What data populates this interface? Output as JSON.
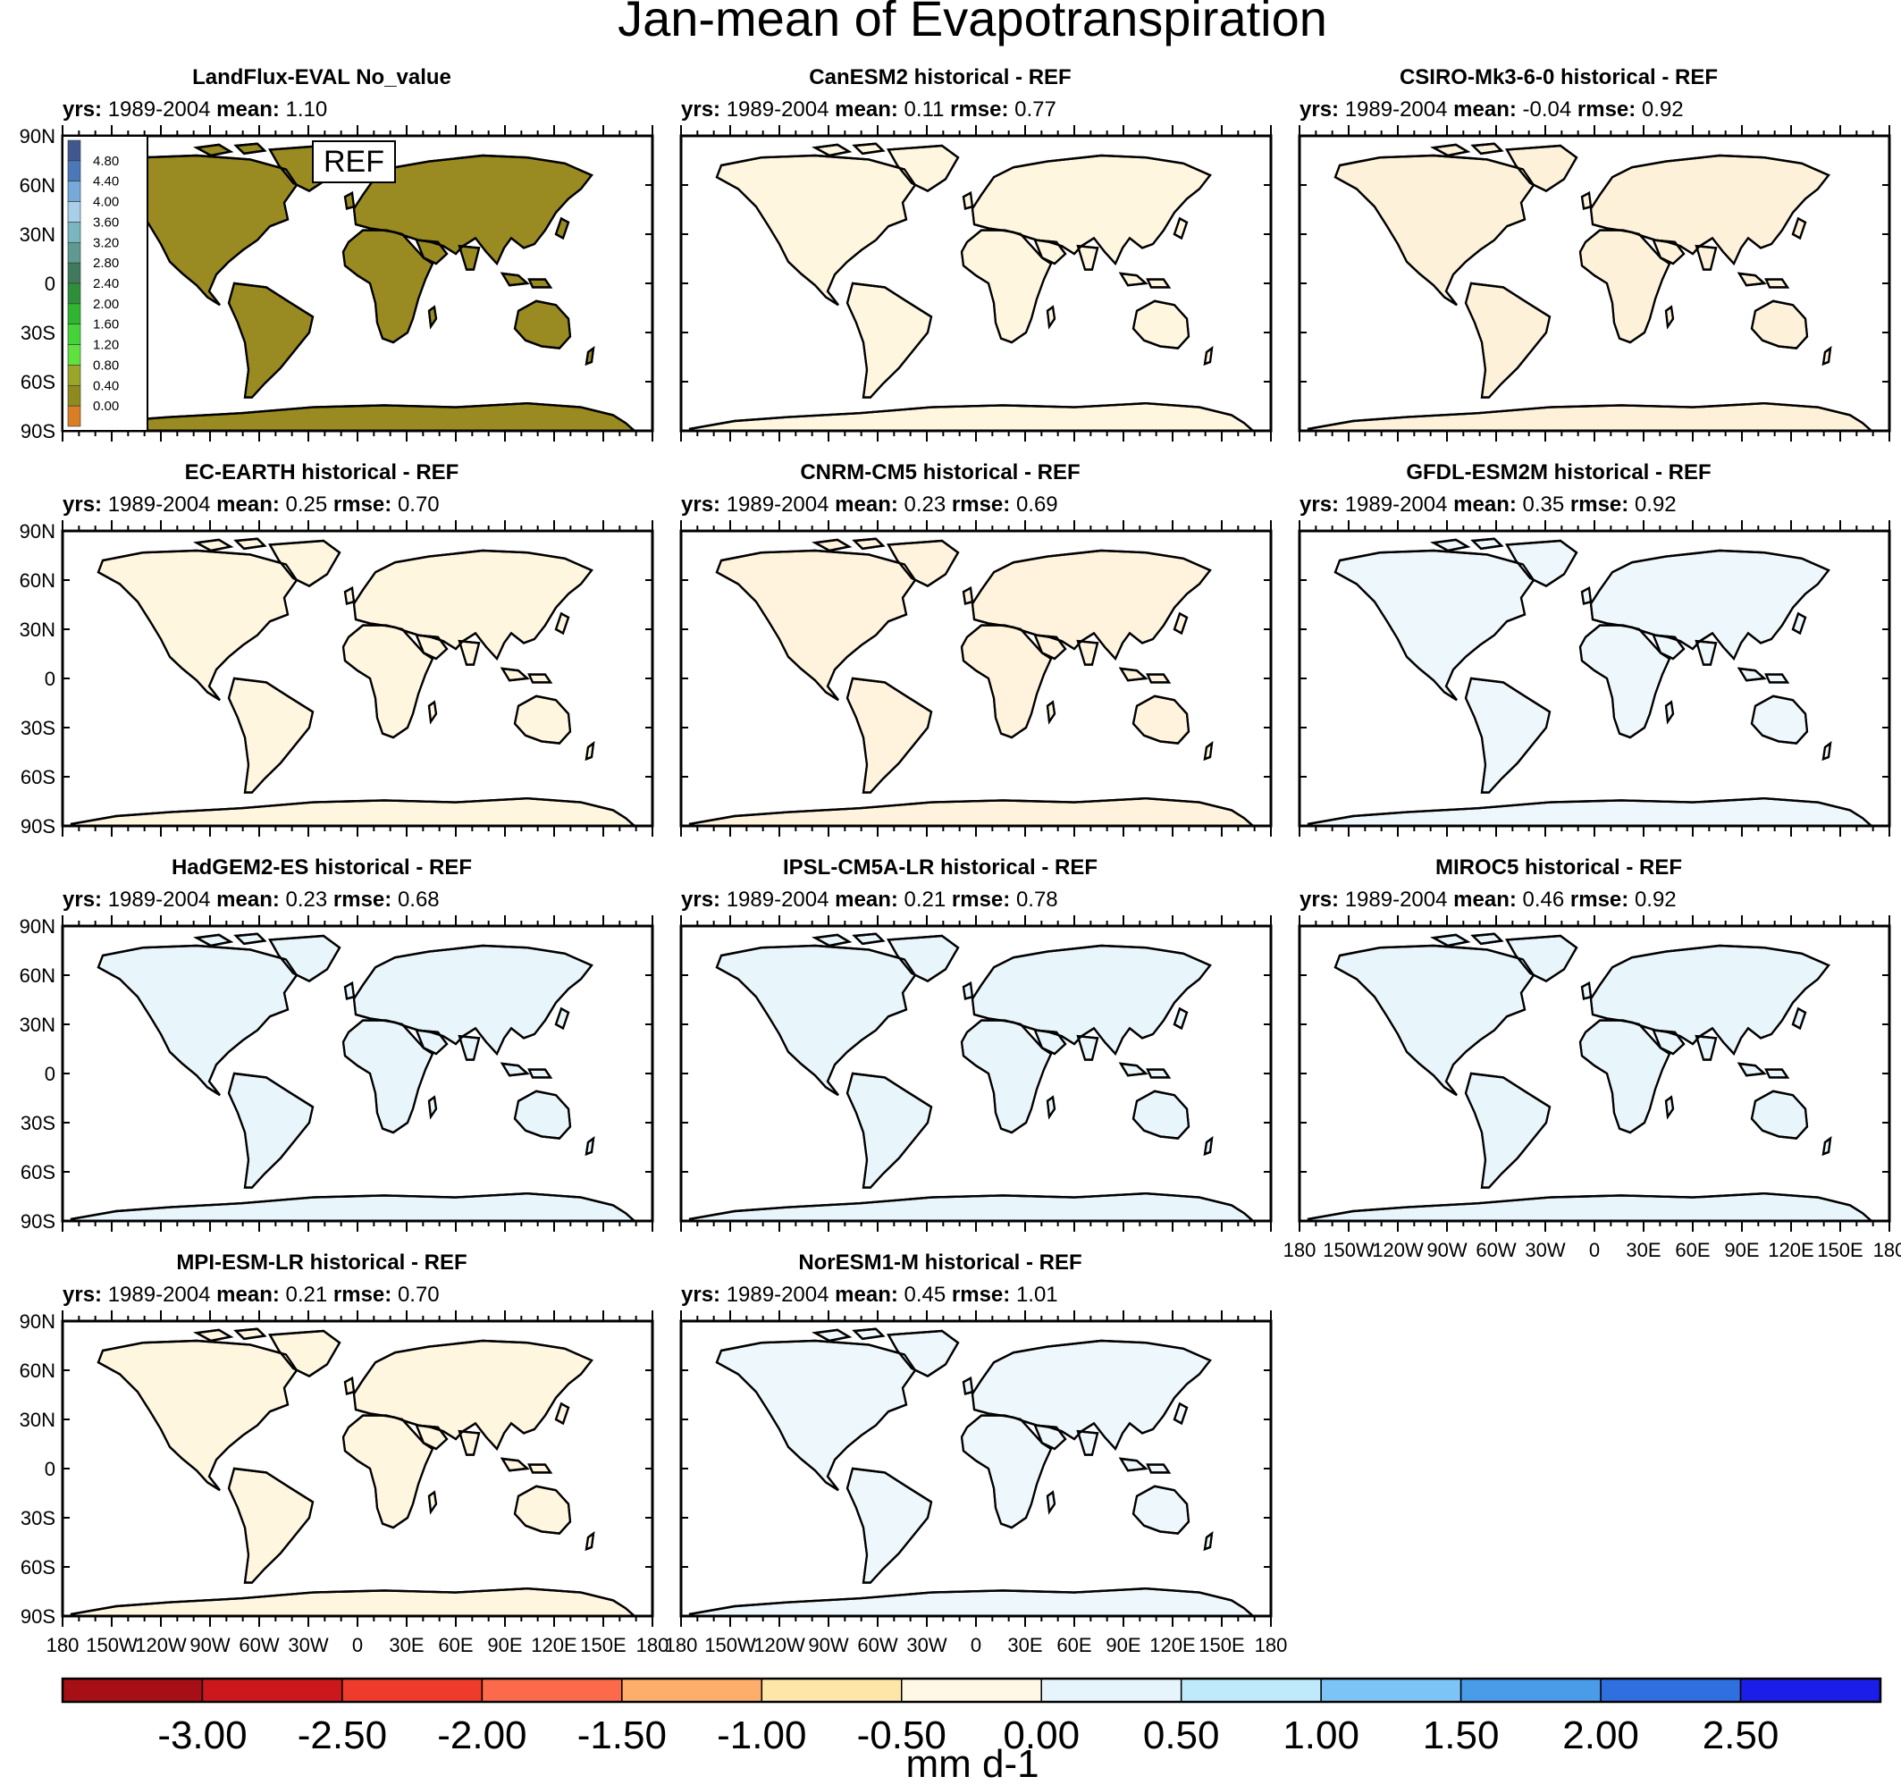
{
  "chart_data": {
    "type": "heatmap",
    "title": "Jan-mean of Evapotranspiration",
    "colorbar": {
      "label": "mm d-1",
      "tick_labels": [
        "-3.00",
        "-2.50",
        "-2.00",
        "-1.50",
        "-1.00",
        "-0.50",
        "0.00",
        "0.50",
        "1.00",
        "1.50",
        "2.00",
        "2.50"
      ],
      "colors": [
        "#a50f15",
        "#cb181d",
        "#ef3b2c",
        "#fb6a4a",
        "#fdae6b",
        "#fde6a8",
        "#fff8e7",
        "#e6f5fb",
        "#bfeafc",
        "#7cc4f5",
        "#4a9be8",
        "#2f6fe0",
        "#1a1ee6"
      ]
    },
    "lat_ticks": [
      "90N",
      "60N",
      "30N",
      "0",
      "30S",
      "60S",
      "90S"
    ],
    "lon_ticks": [
      "180",
      "150W",
      "120W",
      "90W",
      "60W",
      "30W",
      "0",
      "30E",
      "60E",
      "90E",
      "120E",
      "150E",
      "180"
    ],
    "panels": [
      {
        "title": "LandFlux-EVAL No_value",
        "yrs": "1989-2004",
        "mean": "1.10",
        "rmse": null,
        "ref": true,
        "ref_label": "REF"
      },
      {
        "title": "CanESM2 historical - REF",
        "yrs": "1989-2004",
        "mean": "0.11",
        "rmse": "0.77"
      },
      {
        "title": "CSIRO-Mk3-6-0 historical - REF",
        "yrs": "1989-2004",
        "mean": "-0.04",
        "rmse": "0.92"
      },
      {
        "title": "EC-EARTH historical - REF",
        "yrs": "1989-2004",
        "mean": "0.25",
        "rmse": "0.70"
      },
      {
        "title": "CNRM-CM5 historical - REF",
        "yrs": "1989-2004",
        "mean": "0.23",
        "rmse": "0.69"
      },
      {
        "title": "GFDL-ESM2M historical - REF",
        "yrs": "1989-2004",
        "mean": "0.35",
        "rmse": "0.92"
      },
      {
        "title": "HadGEM2-ES historical - REF",
        "yrs": "1989-2004",
        "mean": "0.23",
        "rmse": "0.68"
      },
      {
        "title": "IPSL-CM5A-LR historical - REF",
        "yrs": "1989-2004",
        "mean": "0.21",
        "rmse": "0.78"
      },
      {
        "title": "MIROC5 historical - REF",
        "yrs": "1989-2004",
        "mean": "0.46",
        "rmse": "0.92"
      },
      {
        "title": "MPI-ESM-LR historical - REF",
        "yrs": "1989-2004",
        "mean": "0.21",
        "rmse": "0.70"
      },
      {
        "title": "NorESM1-M historical - REF",
        "yrs": "1989-2004",
        "mean": "0.45",
        "rmse": "1.01"
      }
    ],
    "ref_colorbar": {
      "tick_labels": [
        "4.80",
        "4.40",
        "4.00",
        "3.60",
        "3.20",
        "2.80",
        "2.40",
        "2.00",
        "1.60",
        "1.20",
        "0.80",
        "0.40",
        "0.00"
      ],
      "colors": [
        "#41578f",
        "#4a78b8",
        "#76a9d8",
        "#a9cfe8",
        "#7ab6c0",
        "#5f9a92",
        "#3f7a5c",
        "#2e8f3a",
        "#2fb52f",
        "#44d43a",
        "#5fe23f",
        "#9aa62a",
        "#8f8a1e",
        "#d87f26"
      ]
    }
  }
}
